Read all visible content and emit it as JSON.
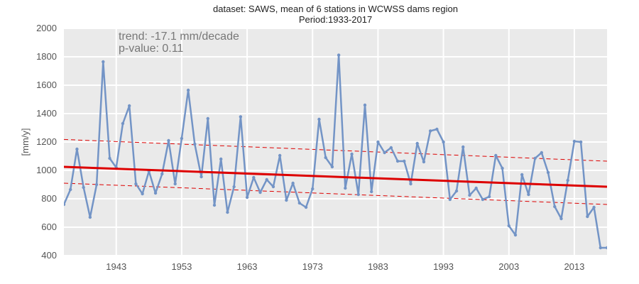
{
  "chart_data": {
    "type": "line",
    "title_line1": "dataset: SAWS, mean of 6 stations in WCWSS dams region",
    "title_line2": "Period:1933-2017",
    "xlabel": "",
    "ylabel": "[mm/y]",
    "xlim": [
      1935,
      2018
    ],
    "ylim": [
      400,
      2000
    ],
    "xticks": [
      1943,
      1953,
      1963,
      1973,
      1983,
      1993,
      2003,
      2013
    ],
    "yticks": [
      400,
      600,
      800,
      1000,
      1200,
      1400,
      1600,
      1800,
      2000
    ],
    "grid": true,
    "annotation": [
      "trend: -17.1 mm/decade",
      "p-value: 0.11"
    ],
    "series": [
      {
        "color": "#7394c6",
        "x": [
          1935,
          1936,
          1937,
          1938,
          1939,
          1940,
          1941,
          1942,
          1943,
          1944,
          1945,
          1946,
          1947,
          1948,
          1949,
          1950,
          1951,
          1952,
          1953,
          1954,
          1955,
          1956,
          1957,
          1958,
          1959,
          1960,
          1961,
          1962,
          1963,
          1964,
          1965,
          1966,
          1967,
          1968,
          1969,
          1970,
          1971,
          1972,
          1973,
          1974,
          1975,
          1976,
          1977,
          1978,
          1979,
          1980,
          1981,
          1982,
          1983,
          1984,
          1985,
          1986,
          1987,
          1988,
          1989,
          1990,
          1991,
          1992,
          1993,
          1994,
          1995,
          1996,
          1997,
          1998,
          1999,
          2000,
          2001,
          2002,
          2003,
          2004,
          2005,
          2006,
          2007,
          2008,
          2009,
          2010,
          2011,
          2012,
          2013,
          2014,
          2015,
          2016,
          2017,
          2018
        ],
        "y": [
          760,
          865,
          1150,
          880,
          670,
          900,
          1765,
          1085,
          1020,
          1330,
          1455,
          905,
          835,
          995,
          840,
          975,
          1210,
          905,
          1225,
          1565,
          1185,
          955,
          1365,
          755,
          1080,
          705,
          885,
          1378,
          810,
          950,
          845,
          935,
          885,
          1105,
          790,
          910,
          770,
          740,
          870,
          1360,
          1090,
          1025,
          1812,
          875,
          1115,
          830,
          1460,
          850,
          1200,
          1125,
          1160,
          1065,
          1065,
          905,
          1190,
          1060,
          1278,
          1290,
          1200,
          795,
          855,
          1165,
          825,
          875,
          795,
          815,
          1105,
          1015,
          610,
          545,
          970,
          830,
          1085,
          1125,
          985,
          745,
          660,
          930,
          1205,
          1200,
          675,
          740,
          455,
          455
        ]
      }
    ],
    "trend_line": {
      "color": "#dd0000",
      "x": [
        1935,
        2018
      ],
      "y": [
        1025,
        885
      ]
    },
    "confidence_band": {
      "color": "#dd0000",
      "upper": [
        1218,
        1065
      ],
      "lower": [
        910,
        760
      ]
    }
  }
}
